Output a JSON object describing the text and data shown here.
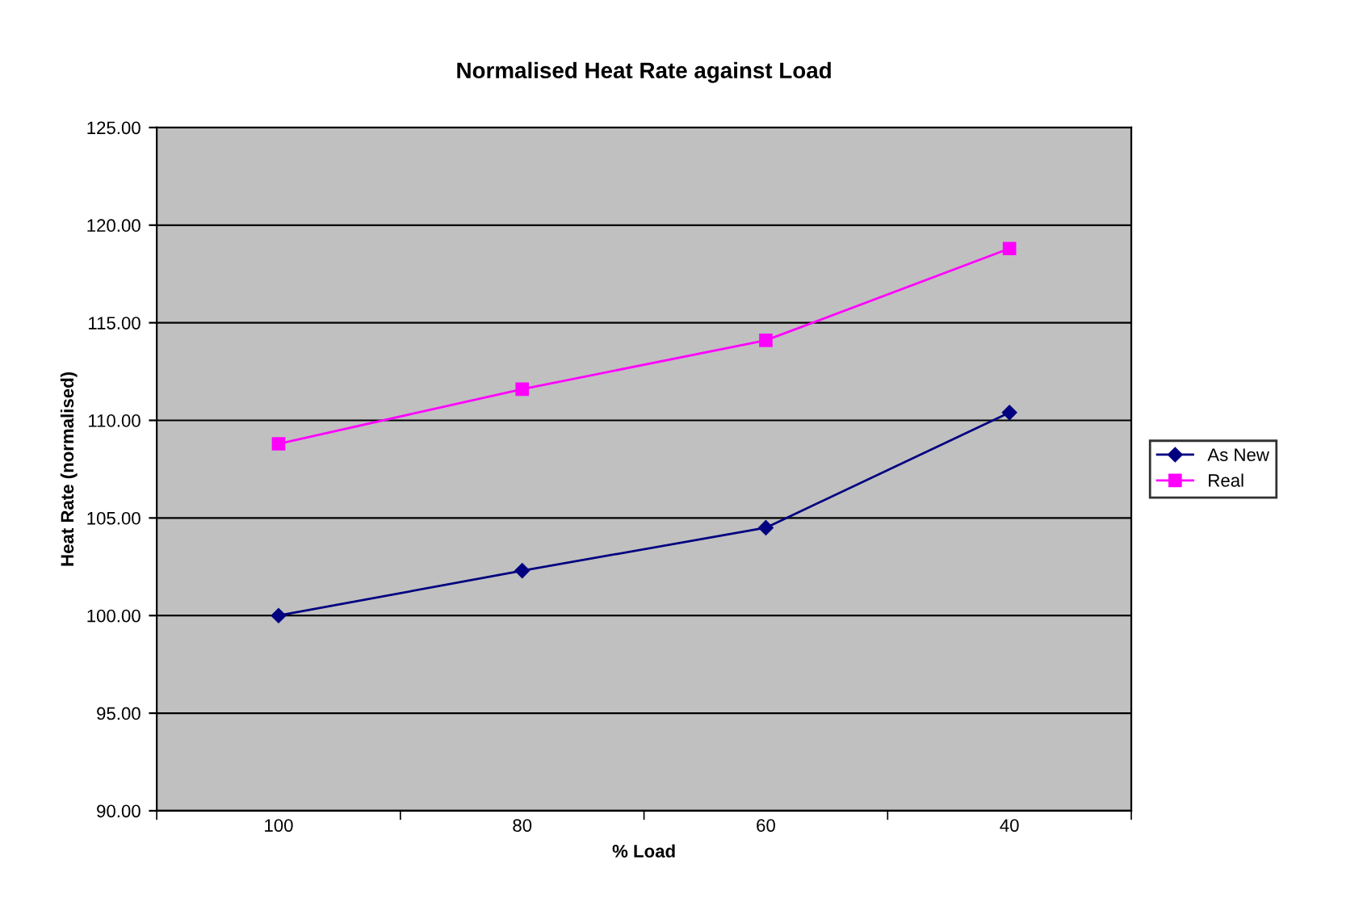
{
  "chart_data": {
    "type": "line",
    "title": "Normalised Heat Rate against Load",
    "xlabel": "% Load",
    "ylabel": "Heat Rate (normalised)",
    "categories": [
      "100",
      "80",
      "60",
      "40"
    ],
    "series": [
      {
        "name": "As New",
        "color": "#000080",
        "marker": "diamond",
        "values": [
          100.0,
          102.3,
          104.5,
          110.4
        ]
      },
      {
        "name": "Real",
        "color": "#ff00ff",
        "marker": "square",
        "values": [
          108.8,
          111.6,
          114.1,
          118.8
        ]
      }
    ],
    "ylim": [
      90,
      125
    ],
    "yticks": [
      {
        "value": 90,
        "label": "90.00"
      },
      {
        "value": 95,
        "label": "95.00"
      },
      {
        "value": 100,
        "label": "100.00"
      },
      {
        "value": 105,
        "label": "105.00"
      },
      {
        "value": 110,
        "label": "110.00"
      },
      {
        "value": 115,
        "label": "115.00"
      },
      {
        "value": 120,
        "label": "120.00"
      },
      {
        "value": 125,
        "label": "125.00"
      }
    ],
    "grid": "y",
    "legend": "right",
    "line_style": "solid"
  }
}
